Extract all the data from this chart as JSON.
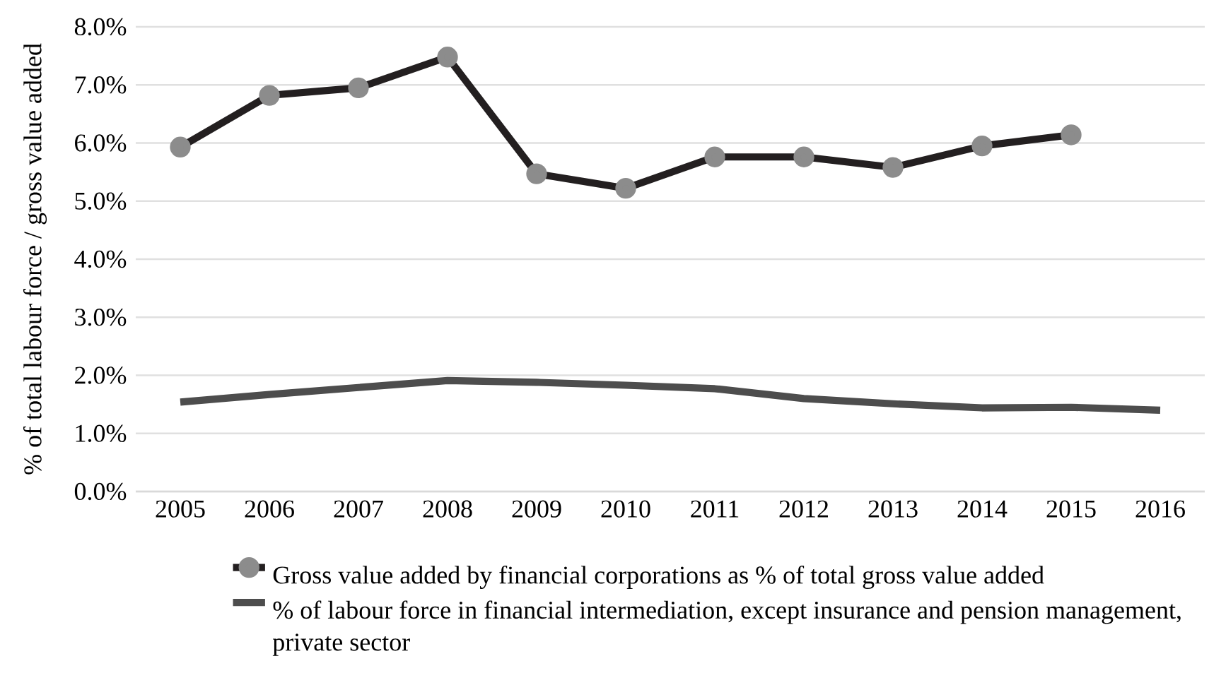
{
  "chart_data": {
    "type": "line",
    "ylabel": "% of total labour force / gross value added",
    "categories": [
      "2005",
      "2006",
      "2007",
      "2008",
      "2009",
      "2010",
      "2011",
      "2012",
      "2013",
      "2014",
      "2015",
      "2016"
    ],
    "series": [
      {
        "name": "Gross value added by financial corporations as % of total gross value added",
        "color": "#231f20",
        "marker": "circle",
        "values": [
          5.93,
          6.82,
          6.95,
          7.48,
          5.47,
          5.22,
          5.76,
          5.76,
          5.58,
          5.95,
          6.14,
          null
        ]
      },
      {
        "name": "% of labour force in financial intermediation, except insurance and pension management, private sector",
        "color": "#4d4d4d",
        "marker": "none",
        "values": [
          1.54,
          1.67,
          1.79,
          1.91,
          1.88,
          1.83,
          1.77,
          1.6,
          1.51,
          1.44,
          1.45,
          1.4
        ]
      }
    ],
    "ylim": [
      0,
      8
    ],
    "yticks": [
      {
        "value": 0,
        "label": "0.0%"
      },
      {
        "value": 1,
        "label": "1.0%"
      },
      {
        "value": 2,
        "label": "2.0%"
      },
      {
        "value": 3,
        "label": "3.0%"
      },
      {
        "value": 4,
        "label": "4.0%"
      },
      {
        "value": 5,
        "label": "5.0%"
      },
      {
        "value": 6,
        "label": "6.0%"
      },
      {
        "value": 7,
        "label": "7.0%"
      },
      {
        "value": 8,
        "label": "8.0%"
      }
    ],
    "grid": "y",
    "legend": "bottom",
    "line_style": "solid"
  }
}
